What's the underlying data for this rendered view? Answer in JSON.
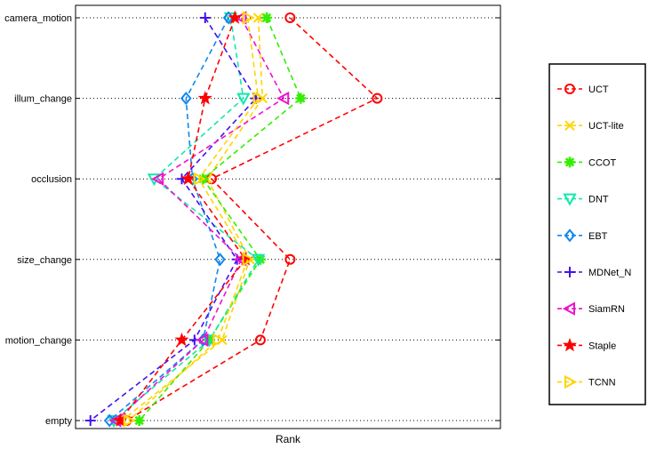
{
  "chart_data": {
    "type": "line",
    "title": "",
    "xlabel": "Rank",
    "ylabel": "",
    "categories": [
      "camera_motion",
      "illum_change",
      "occlusion",
      "size_change",
      "motion_change",
      "empty"
    ],
    "xlim": [
      0,
      20
    ],
    "grid": "horizontal dotted",
    "legend_position": "right",
    "series": [
      {
        "name": "UCT",
        "color": "#ff0000",
        "marker": "circle",
        "values": [
          10.1,
          14.2,
          6.4,
          10.1,
          8.7,
          2.4
        ]
      },
      {
        "name": "UCT-lite",
        "color": "#ffd400",
        "marker": "x",
        "values": [
          8.6,
          8.8,
          6.2,
          8.2,
          6.9,
          2.2
        ]
      },
      {
        "name": "CCOT",
        "color": "#33ee00",
        "marker": "asterisk",
        "values": [
          9.0,
          10.6,
          6.0,
          8.7,
          6.3,
          3.0
        ]
      },
      {
        "name": "DNT",
        "color": "#11e8aa",
        "marker": "triangle-down",
        "values": [
          7.3,
          7.9,
          3.7,
          8.6,
          6.3,
          1.8
        ]
      },
      {
        "name": "EBT",
        "color": "#1188ee",
        "marker": "diamond",
        "values": [
          7.2,
          5.2,
          5.5,
          6.8,
          6.0,
          1.6
        ]
      },
      {
        "name": "MDNet_N",
        "color": "#4411ee",
        "marker": "plus",
        "values": [
          6.1,
          8.5,
          5.0,
          7.6,
          5.6,
          0.7
        ]
      },
      {
        "name": "SiamRN",
        "color": "#ee11cc",
        "marker": "triangle-left",
        "values": [
          7.8,
          9.8,
          3.9,
          7.8,
          6.0,
          1.9
        ]
      },
      {
        "name": "Staple",
        "color": "#ff0000",
        "marker": "star",
        "values": [
          7.5,
          6.1,
          5.3,
          8.0,
          5.0,
          2.1
        ]
      },
      {
        "name": "TCNN",
        "color": "#ffd400",
        "marker": "triangle-right",
        "values": [
          8.1,
          8.6,
          5.8,
          8.1,
          6.7,
          2.5
        ]
      }
    ]
  }
}
